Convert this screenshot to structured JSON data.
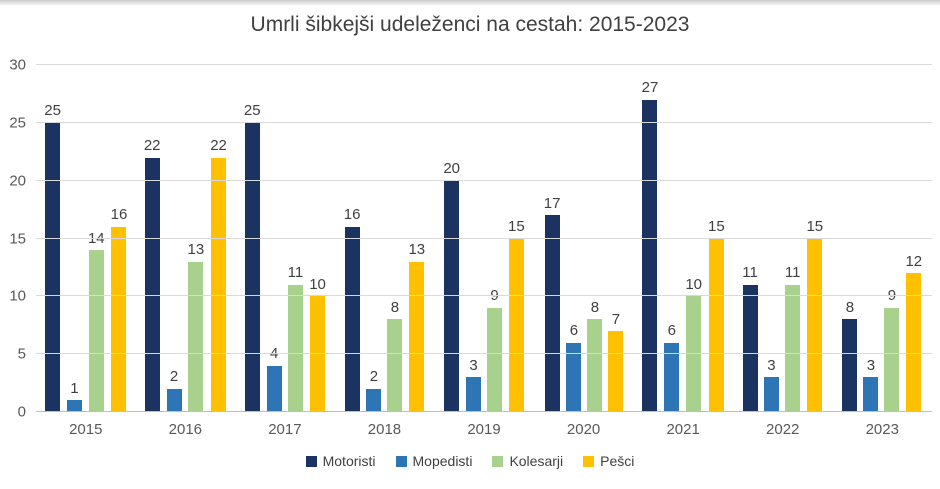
{
  "title": "Umrli šibkejši udeleženci na cestah: 2015-2023",
  "colors": {
    "background": "#FFFFFF",
    "title_text": "#404040",
    "axis_text": "#595959",
    "value_label_text": "#404040",
    "gridline": "#D9D9D9",
    "axis_line": "#BFBFBF"
  },
  "chart_data": {
    "type": "bar",
    "title": "Umrli šibkejši udeleženci na cestah: 2015-2023",
    "categories": [
      "2015",
      "2016",
      "2017",
      "2018",
      "2019",
      "2020",
      "2021",
      "2022",
      "2023"
    ],
    "series": [
      {
        "name": "Motoristi",
        "color": "#1B3360",
        "values": [
          25,
          22,
          25,
          16,
          20,
          17,
          27,
          11,
          8
        ]
      },
      {
        "name": "Mopedisti",
        "color": "#2E75B6",
        "values": [
          1,
          2,
          4,
          2,
          3,
          6,
          6,
          3,
          3
        ]
      },
      {
        "name": "Kolesarji",
        "color": "#A9D18E",
        "values": [
          14,
          13,
          11,
          8,
          9,
          8,
          10,
          11,
          9
        ]
      },
      {
        "name": "Pešci",
        "color": "#FFC000",
        "values": [
          16,
          22,
          10,
          13,
          15,
          7,
          15,
          15,
          12
        ]
      }
    ],
    "xlabel": "",
    "ylabel": "",
    "ylim": [
      0,
      30
    ],
    "yticks": [
      0,
      5,
      10,
      15,
      20,
      25,
      30
    ],
    "grid": true,
    "value_labels": true,
    "legend_position": "bottom"
  }
}
